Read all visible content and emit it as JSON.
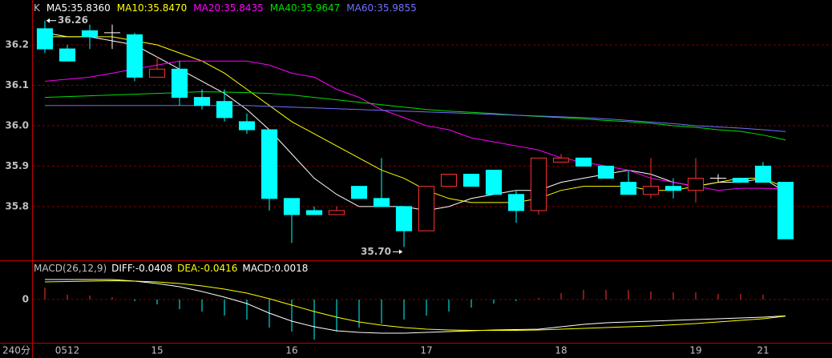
{
  "chart_data": [
    {
      "type": "candlestick",
      "title": "K",
      "legend_separator": ":",
      "categories": [
        null,
        "0512",
        null,
        null,
        null,
        "15",
        null,
        null,
        null,
        null,
        null,
        "16",
        null,
        null,
        null,
        null,
        null,
        "17",
        null,
        null,
        null,
        null,
        null,
        "18",
        null,
        null,
        null,
        null,
        null,
        "19",
        null,
        null,
        "21",
        null
      ],
      "open": [
        36.24,
        36.19,
        36.235,
        36.23,
        36.225,
        36.12,
        36.14,
        36.07,
        36.06,
        36.01,
        35.99,
        35.82,
        35.79,
        35.78,
        35.85,
        35.82,
        35.8,
        35.74,
        35.85,
        35.88,
        35.89,
        35.83,
        35.79,
        35.91,
        35.92,
        35.9,
        35.86,
        35.83,
        35.85,
        35.84,
        35.87,
        35.87,
        35.9,
        35.86
      ],
      "close": [
        36.19,
        36.16,
        36.22,
        36.23,
        36.12,
        36.14,
        36.07,
        36.05,
        36.02,
        35.99,
        35.82,
        35.78,
        35.78,
        35.79,
        35.82,
        35.8,
        35.74,
        35.85,
        35.88,
        35.85,
        35.83,
        35.79,
        35.92,
        35.92,
        35.9,
        35.87,
        35.83,
        35.85,
        35.84,
        35.87,
        35.87,
        35.86,
        35.86,
        35.72
      ],
      "high": [
        36.26,
        36.2,
        36.25,
        36.25,
        36.23,
        36.17,
        36.16,
        36.09,
        36.09,
        36.03,
        35.99,
        35.82,
        35.8,
        35.8,
        35.85,
        35.92,
        35.8,
        35.85,
        35.88,
        35.88,
        35.89,
        35.84,
        35.92,
        35.93,
        35.92,
        35.9,
        35.89,
        35.92,
        35.87,
        35.92,
        35.88,
        35.87,
        35.91,
        35.86
      ],
      "low": [
        36.18,
        36.16,
        36.19,
        36.19,
        36.11,
        36.12,
        36.05,
        36.04,
        36.01,
        35.98,
        35.79,
        35.71,
        35.78,
        35.78,
        35.82,
        35.8,
        35.7,
        35.74,
        35.85,
        35.85,
        35.83,
        35.76,
        35.78,
        35.91,
        35.9,
        35.87,
        35.83,
        35.82,
        35.82,
        35.81,
        35.86,
        35.86,
        35.86,
        35.72
      ],
      "up_color": "#ff3232",
      "down_color": "#00ffff",
      "flat_color": "#ffffff",
      "series": [
        {
          "name": "MA5",
          "color": "#ffffff",
          "last_label": "35.8360",
          "values": [
            36.23,
            36.22,
            36.22,
            36.21,
            36.2,
            36.17,
            36.14,
            36.11,
            36.08,
            36.04,
            35.99,
            35.93,
            35.87,
            35.83,
            35.8,
            35.8,
            35.8,
            35.79,
            35.8,
            35.82,
            35.83,
            35.84,
            35.84,
            35.86,
            35.87,
            35.88,
            35.89,
            35.88,
            35.86,
            35.85,
            35.86,
            35.86,
            35.87,
            35.836
          ]
        },
        {
          "name": "MA10",
          "color": "#ffff00",
          "last_label": "35.8470",
          "values": [
            36.22,
            36.22,
            36.22,
            36.22,
            36.21,
            36.2,
            36.18,
            36.16,
            36.13,
            36.09,
            36.05,
            36.01,
            35.98,
            35.95,
            35.92,
            35.89,
            35.87,
            35.84,
            35.82,
            35.81,
            35.81,
            35.81,
            35.82,
            35.84,
            35.85,
            35.85,
            35.85,
            35.84,
            35.84,
            35.85,
            35.86,
            35.87,
            35.87,
            35.847
          ]
        },
        {
          "name": "MA20",
          "color": "#ff00ff",
          "last_label": "35.8435",
          "values": [
            36.11,
            36.115,
            36.12,
            36.13,
            36.14,
            36.15,
            36.16,
            36.16,
            36.16,
            36.16,
            36.15,
            36.13,
            36.12,
            36.09,
            36.07,
            36.04,
            36.02,
            36.0,
            35.99,
            35.97,
            35.96,
            35.95,
            35.94,
            35.92,
            35.91,
            35.9,
            35.89,
            35.87,
            35.86,
            35.85,
            35.84,
            35.845,
            35.845,
            35.8435
          ]
        },
        {
          "name": "MA40",
          "color": "#00e000",
          "last_label": "35.9647",
          "values": [
            36.07,
            36.072,
            36.074,
            36.076,
            36.078,
            36.08,
            36.082,
            36.084,
            36.083,
            36.082,
            36.08,
            36.076,
            36.07,
            36.064,
            36.058,
            36.052,
            36.046,
            36.04,
            36.036,
            36.033,
            36.03,
            36.026,
            36.023,
            36.02,
            36.017,
            36.013,
            36.01,
            36.006,
            36.0,
            35.996,
            35.99,
            35.986,
            35.977,
            35.9647
          ]
        },
        {
          "name": "MA60",
          "color": "#7070ff",
          "last_label": "35.9855",
          "values": [
            36.05,
            36.05,
            36.05,
            36.05,
            36.05,
            36.05,
            36.05,
            36.05,
            36.05,
            36.05,
            36.048,
            36.046,
            36.044,
            36.042,
            36.04,
            36.038,
            36.036,
            36.034,
            36.032,
            36.03,
            36.028,
            36.026,
            36.024,
            36.022,
            36.02,
            36.017,
            36.013,
            36.009,
            36.005,
            36.0,
            35.997,
            35.994,
            35.99,
            35.9855
          ]
        }
      ],
      "annotations": [
        {
          "label": "36.26",
          "value": 36.26
        },
        {
          "label": "35.70",
          "value": 35.7
        }
      ],
      "ylim": [
        35.667,
        36.311
      ],
      "yticks": [
        {
          "value": 36.2,
          "label": "36.2"
        },
        {
          "value": 36.1,
          "label": "36.1"
        },
        {
          "value": 36,
          "label": "36.0"
        },
        35.9,
        35.8
      ],
      "grid": true,
      "period_label": "240分"
    },
    {
      "type": "macd",
      "title": "MACD(26,12,9)",
      "series": [
        {
          "name": "DIFF",
          "color": "#ffffff",
          "last_label": "-0.0408",
          "values": [
            0.05,
            0.05,
            0.05,
            0.05,
            0.046,
            0.04,
            0.032,
            0.02,
            0.006,
            -0.01,
            -0.034,
            -0.054,
            -0.068,
            -0.078,
            -0.082,
            -0.084,
            -0.084,
            -0.082,
            -0.08,
            -0.078,
            -0.076,
            -0.075,
            -0.074,
            -0.068,
            -0.062,
            -0.058,
            -0.056,
            -0.054,
            -0.052,
            -0.05,
            -0.048,
            -0.046,
            -0.044,
            -0.0408
          ]
        },
        {
          "name": "DEA",
          "color": "#ffff00",
          "last_label": "-0.0416",
          "values": [
            0.044,
            0.045,
            0.046,
            0.047,
            0.046,
            0.044,
            0.04,
            0.034,
            0.026,
            0.016,
            0.002,
            -0.014,
            -0.03,
            -0.044,
            -0.056,
            -0.064,
            -0.07,
            -0.074,
            -0.076,
            -0.077,
            -0.077,
            -0.077,
            -0.076,
            -0.074,
            -0.072,
            -0.07,
            -0.068,
            -0.066,
            -0.063,
            -0.06,
            -0.056,
            -0.052,
            -0.048,
            -0.0416
          ]
        }
      ],
      "histogram": {
        "name": "MACD",
        "last_label": "0.0018",
        "up_color": "#ff3232",
        "down_color": "#00ffff",
        "values": [
          0.03,
          0.012,
          0.01,
          0.006,
          -0.004,
          -0.012,
          -0.024,
          -0.03,
          -0.04,
          -0.05,
          -0.07,
          -0.08,
          -0.1,
          -0.08,
          -0.07,
          -0.06,
          -0.05,
          -0.04,
          -0.03,
          -0.02,
          -0.01,
          -0.004,
          0.004,
          0.016,
          0.024,
          0.024,
          0.024,
          0.02,
          0.018,
          0.018,
          0.014,
          0.014,
          0.012,
          0.0018
        ]
      },
      "ylim": [
        -0.104,
        0.096
      ],
      "yticks": [
        0
      ]
    }
  ]
}
